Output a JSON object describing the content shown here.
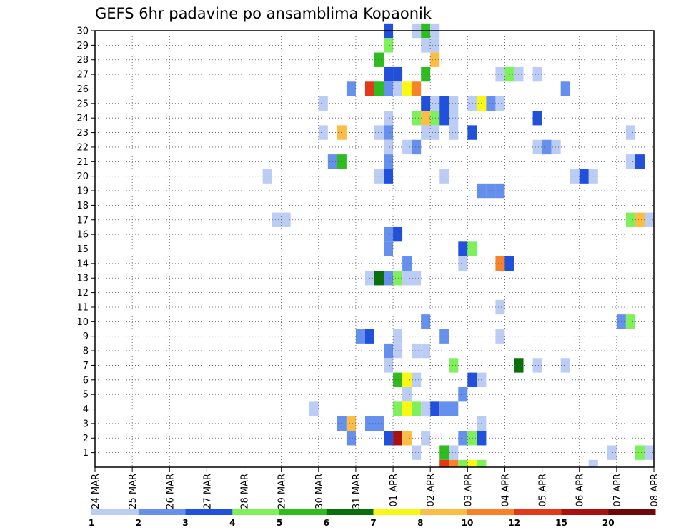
{
  "chart_data": {
    "type": "heatmap",
    "title": "GEFS 6hr padavine po ansamblima Kopaonik",
    "xlabel": "",
    "ylabel": "",
    "x_tick_labels": [
      "24 MAR",
      "25 MAR",
      "26 MAR",
      "27 MAR",
      "28 MAR",
      "29 MAR",
      "30 MAR",
      "31 MAR",
      "01 APR",
      "02 APR",
      "03 APR",
      "04 APR",
      "05 APR",
      "06 APR",
      "07 APR",
      "08 APR"
    ],
    "x_range_days": [
      0,
      15
    ],
    "y_tick_labels": [
      "1",
      "2",
      "3",
      "4",
      "5",
      "6",
      "7",
      "8",
      "9",
      "10",
      "11",
      "12",
      "13",
      "14",
      "15",
      "16",
      "17",
      "18",
      "19",
      "20",
      "21",
      "22",
      "23",
      "24",
      "25",
      "26",
      "27",
      "28",
      "29",
      "30"
    ],
    "y_range": [
      0,
      30
    ],
    "grid": true,
    "legend_placement": "bottom",
    "legend": {
      "labels": [
        "1",
        "2",
        "3",
        "4",
        "5",
        "6",
        "7",
        "8",
        "10",
        "12",
        "15",
        "20"
      ],
      "colors": [
        "#bccdf5",
        "#6690ee",
        "#2150dd",
        "#7ef05c",
        "#2fbc1f",
        "#0a6e0a",
        "#f8f812",
        "#fbbd44",
        "#f7822a",
        "#e43818",
        "#aa1010",
        "#6e0808"
      ]
    },
    "cells": [
      {
        "member": 30,
        "day": 7.75,
        "value": 3
      },
      {
        "member": 30,
        "day": 8.5,
        "value": 1
      },
      {
        "member": 30,
        "day": 8.75,
        "value": 5
      },
      {
        "member": 30,
        "day": 9,
        "value": 1
      },
      {
        "member": 29,
        "day": 7.75,
        "value": 4
      },
      {
        "member": 29,
        "day": 8.75,
        "value": 1
      },
      {
        "member": 29,
        "day": 9,
        "value": 1
      },
      {
        "member": 28,
        "day": 7.5,
        "value": 5
      },
      {
        "member": 28,
        "day": 9,
        "value": 9
      },
      {
        "member": 27,
        "day": 7.75,
        "value": 3
      },
      {
        "member": 27,
        "day": 8,
        "value": 3
      },
      {
        "member": 27,
        "day": 8.75,
        "value": 5
      },
      {
        "member": 27,
        "day": 10.75,
        "value": 1
      },
      {
        "member": 27,
        "day": 11,
        "value": 4
      },
      {
        "member": 27,
        "day": 11.25,
        "value": 1
      },
      {
        "member": 27,
        "day": 11.75,
        "value": 1
      },
      {
        "member": 26,
        "day": 6.75,
        "value": 2
      },
      {
        "member": 26,
        "day": 7.25,
        "value": 13
      },
      {
        "member": 26,
        "day": 7.5,
        "value": 5
      },
      {
        "member": 26,
        "day": 7.75,
        "value": 2
      },
      {
        "member": 26,
        "day": 8,
        "value": 1
      },
      {
        "member": 26,
        "day": 8.25,
        "value": 7
      },
      {
        "member": 26,
        "day": 8.5,
        "value": 10
      },
      {
        "member": 26,
        "day": 12.5,
        "value": 2
      },
      {
        "member": 25,
        "day": 6,
        "value": 1
      },
      {
        "member": 25,
        "day": 8.75,
        "value": 3
      },
      {
        "member": 25,
        "day": 9,
        "value": 1
      },
      {
        "member": 25,
        "day": 9.25,
        "value": 3
      },
      {
        "member": 25,
        "day": 9.5,
        "value": 1
      },
      {
        "member": 25,
        "day": 10,
        "value": 1
      },
      {
        "member": 25,
        "day": 10.25,
        "value": 7
      },
      {
        "member": 25,
        "day": 10.5,
        "value": 2
      },
      {
        "member": 25,
        "day": 10.75,
        "value": 1
      },
      {
        "member": 24,
        "day": 7.75,
        "value": 1
      },
      {
        "member": 24,
        "day": 8.5,
        "value": 4
      },
      {
        "member": 24,
        "day": 8.75,
        "value": 9
      },
      {
        "member": 24,
        "day": 9,
        "value": 4
      },
      {
        "member": 24,
        "day": 9.25,
        "value": 3
      },
      {
        "member": 24,
        "day": 9.5,
        "value": 1
      },
      {
        "member": 24,
        "day": 11.75,
        "value": 3
      },
      {
        "member": 23,
        "day": 6,
        "value": 1
      },
      {
        "member": 23,
        "day": 6.5,
        "value": 9
      },
      {
        "member": 23,
        "day": 7.5,
        "value": 1
      },
      {
        "member": 23,
        "day": 7.75,
        "value": 2
      },
      {
        "member": 23,
        "day": 8.75,
        "value": 1
      },
      {
        "member": 23,
        "day": 9,
        "value": 1
      },
      {
        "member": 23,
        "day": 9.5,
        "value": 1
      },
      {
        "member": 23,
        "day": 10,
        "value": 3
      },
      {
        "member": 23,
        "day": 14.25,
        "value": 1
      },
      {
        "member": 22,
        "day": 7.75,
        "value": 1
      },
      {
        "member": 22,
        "day": 8.25,
        "value": 1
      },
      {
        "member": 22,
        "day": 8.5,
        "value": 2
      },
      {
        "member": 22,
        "day": 11.75,
        "value": 1
      },
      {
        "member": 22,
        "day": 12,
        "value": 2
      },
      {
        "member": 22,
        "day": 12.25,
        "value": 1
      },
      {
        "member": 21,
        "day": 6.25,
        "value": 2
      },
      {
        "member": 21,
        "day": 6.5,
        "value": 5
      },
      {
        "member": 21,
        "day": 7.75,
        "value": 2
      },
      {
        "member": 21,
        "day": 14.25,
        "value": 1
      },
      {
        "member": 21,
        "day": 14.5,
        "value": 3
      },
      {
        "member": 20,
        "day": 4.5,
        "value": 1
      },
      {
        "member": 20,
        "day": 7.5,
        "value": 1
      },
      {
        "member": 20,
        "day": 7.75,
        "value": 3
      },
      {
        "member": 20,
        "day": 9.25,
        "value": 1
      },
      {
        "member": 20,
        "day": 12.75,
        "value": 1
      },
      {
        "member": 20,
        "day": 13,
        "value": 3
      },
      {
        "member": 20,
        "day": 13.25,
        "value": 1
      },
      {
        "member": 19,
        "day": 10.25,
        "value": 2
      },
      {
        "member": 19,
        "day": 10.5,
        "value": 2
      },
      {
        "member": 19,
        "day": 10.75,
        "value": 2
      },
      {
        "member": 17,
        "day": 4.75,
        "value": 1
      },
      {
        "member": 17,
        "day": 5,
        "value": 1
      },
      {
        "member": 17,
        "day": 14.25,
        "value": 4
      },
      {
        "member": 17,
        "day": 14.5,
        "value": 9
      },
      {
        "member": 17,
        "day": 14.75,
        "value": 1
      },
      {
        "member": 16,
        "day": 7.75,
        "value": 2
      },
      {
        "member": 16,
        "day": 8,
        "value": 3
      },
      {
        "member": 15,
        "day": 7.75,
        "value": 2
      },
      {
        "member": 15,
        "day": 9.75,
        "value": 3
      },
      {
        "member": 15,
        "day": 10,
        "value": 4
      },
      {
        "member": 14,
        "day": 8.25,
        "value": 2
      },
      {
        "member": 14,
        "day": 9.75,
        "value": 1
      },
      {
        "member": 14,
        "day": 10.75,
        "value": 11
      },
      {
        "member": 14,
        "day": 11,
        "value": 3
      },
      {
        "member": 14,
        "day": 15,
        "value": 3
      },
      {
        "member": 13,
        "day": 7.25,
        "value": 1
      },
      {
        "member": 13,
        "day": 7.5,
        "value": 6
      },
      {
        "member": 13,
        "day": 7.75,
        "value": 2
      },
      {
        "member": 13,
        "day": 8,
        "value": 4
      },
      {
        "member": 13,
        "day": 8.25,
        "value": 1
      },
      {
        "member": 13,
        "day": 8.5,
        "value": 1
      },
      {
        "member": 11,
        "day": 10.75,
        "value": 1
      },
      {
        "member": 10,
        "day": 8.75,
        "value": 2
      },
      {
        "member": 10,
        "day": 14,
        "value": 2
      },
      {
        "member": 10,
        "day": 14.25,
        "value": 4
      },
      {
        "member": 9,
        "day": 7,
        "value": 2
      },
      {
        "member": 9,
        "day": 7.25,
        "value": 3
      },
      {
        "member": 9,
        "day": 8,
        "value": 1
      },
      {
        "member": 9,
        "day": 9.25,
        "value": 2
      },
      {
        "member": 9,
        "day": 10.75,
        "value": 1
      },
      {
        "member": 8,
        "day": 7.75,
        "value": 2
      },
      {
        "member": 8,
        "day": 8,
        "value": 1
      },
      {
        "member": 8,
        "day": 8.5,
        "value": 1
      },
      {
        "member": 8,
        "day": 8.75,
        "value": 1
      },
      {
        "member": 7,
        "day": 7.75,
        "value": 1
      },
      {
        "member": 7,
        "day": 9.5,
        "value": 4
      },
      {
        "member": 7,
        "day": 11.25,
        "value": 6
      },
      {
        "member": 7,
        "day": 11.75,
        "value": 1
      },
      {
        "member": 7,
        "day": 12.5,
        "value": 1
      },
      {
        "member": 6,
        "day": 8,
        "value": 5
      },
      {
        "member": 6,
        "day": 8.25,
        "value": 7
      },
      {
        "member": 6,
        "day": 8.5,
        "value": 1
      },
      {
        "member": 6,
        "day": 10,
        "value": 3
      },
      {
        "member": 6,
        "day": 10.25,
        "value": 1
      },
      {
        "member": 5,
        "day": 8.25,
        "value": 1
      },
      {
        "member": 5,
        "day": 9.75,
        "value": 2
      },
      {
        "member": 4,
        "day": 5.75,
        "value": 1
      },
      {
        "member": 4,
        "day": 8,
        "value": 4
      },
      {
        "member": 4,
        "day": 8.25,
        "value": 7
      },
      {
        "member": 4,
        "day": 8.5,
        "value": 4
      },
      {
        "member": 4,
        "day": 8.75,
        "value": 1
      },
      {
        "member": 4,
        "day": 9,
        "value": 3
      },
      {
        "member": 4,
        "day": 9.25,
        "value": 2
      },
      {
        "member": 4,
        "day": 9.5,
        "value": 2
      },
      {
        "member": 3,
        "day": 6.5,
        "value": 2
      },
      {
        "member": 3,
        "day": 6.75,
        "value": 9
      },
      {
        "member": 3,
        "day": 7.25,
        "value": 2
      },
      {
        "member": 3,
        "day": 7.5,
        "value": 2
      },
      {
        "member": 3,
        "day": 10.25,
        "value": 1
      },
      {
        "member": 2,
        "day": 6.75,
        "value": 2
      },
      {
        "member": 2,
        "day": 7.75,
        "value": 3
      },
      {
        "member": 2,
        "day": 8,
        "value": 16
      },
      {
        "member": 2,
        "day": 8.25,
        "value": 9
      },
      {
        "member": 2,
        "day": 8.75,
        "value": 1
      },
      {
        "member": 2,
        "day": 9.75,
        "value": 2
      },
      {
        "member": 2,
        "day": 10,
        "value": 4
      },
      {
        "member": 2,
        "day": 10.25,
        "value": 3
      },
      {
        "member": 2,
        "day": 15,
        "value": 1
      },
      {
        "member": 1,
        "day": 8.5,
        "value": 1
      },
      {
        "member": 1,
        "day": 9.25,
        "value": 5
      },
      {
        "member": 1,
        "day": 9.5,
        "value": 1
      },
      {
        "member": 1,
        "day": 13.75,
        "value": 1
      },
      {
        "member": 1,
        "day": 14.5,
        "value": 4
      },
      {
        "member": 1,
        "day": 14.75,
        "value": 1
      },
      {
        "member": 1,
        "day": 15,
        "value": 2
      },
      {
        "member": 0,
        "day": 9.25,
        "value": 13
      },
      {
        "member": 0,
        "day": 9.5,
        "value": 11
      },
      {
        "member": 0,
        "day": 9.75,
        "value": 4
      },
      {
        "member": 0,
        "day": 10,
        "value": 7
      },
      {
        "member": 0,
        "day": 10.25,
        "value": 4
      },
      {
        "member": 0,
        "day": 13.25,
        "value": 1
      }
    ]
  }
}
